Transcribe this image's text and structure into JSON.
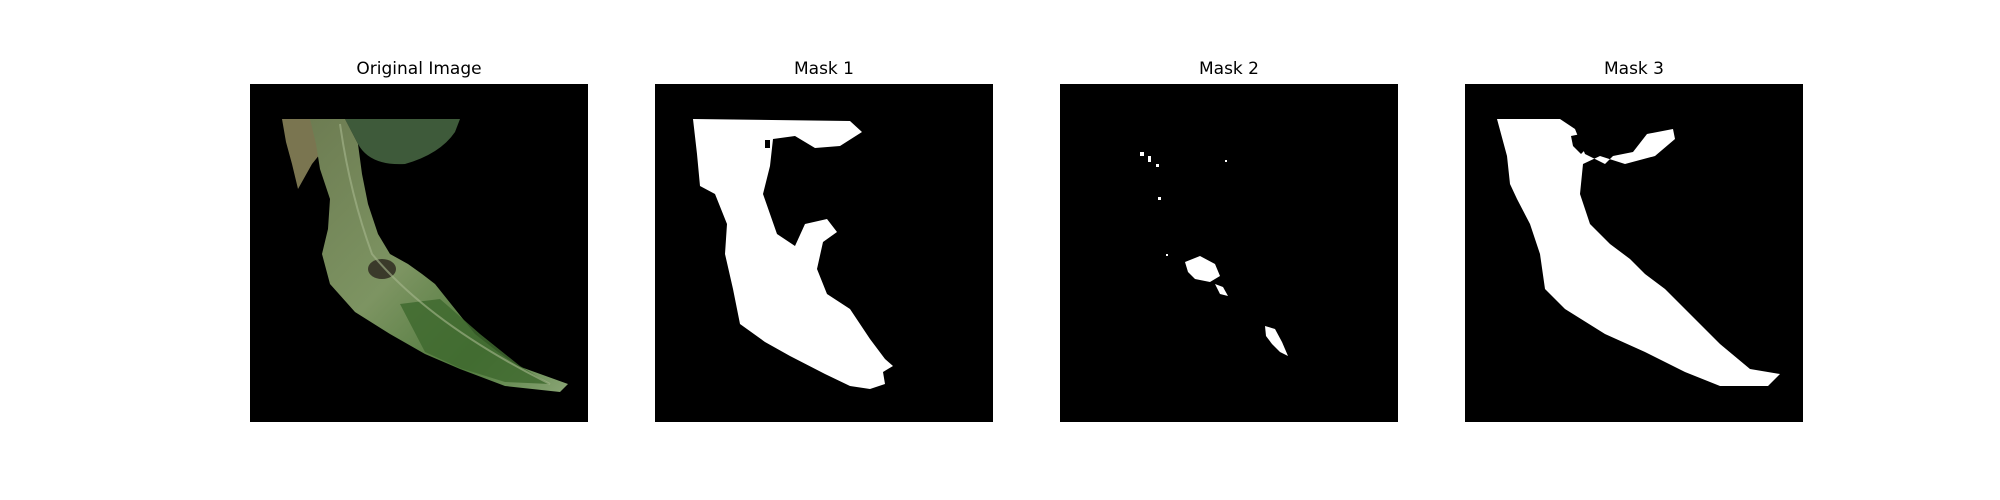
{
  "panels": [
    {
      "title": "Original Image"
    },
    {
      "title": "Mask 1"
    },
    {
      "title": "Mask 2"
    },
    {
      "title": "Mask 3"
    }
  ],
  "colors": {
    "page_background": "#ffffff",
    "image_background": "#000000",
    "mask_foreground": "#ffffff",
    "leaf_green_dark": "#3d5a35",
    "leaf_green_mid": "#6f8a5a",
    "leaf_green_light": "#8fa77a"
  }
}
